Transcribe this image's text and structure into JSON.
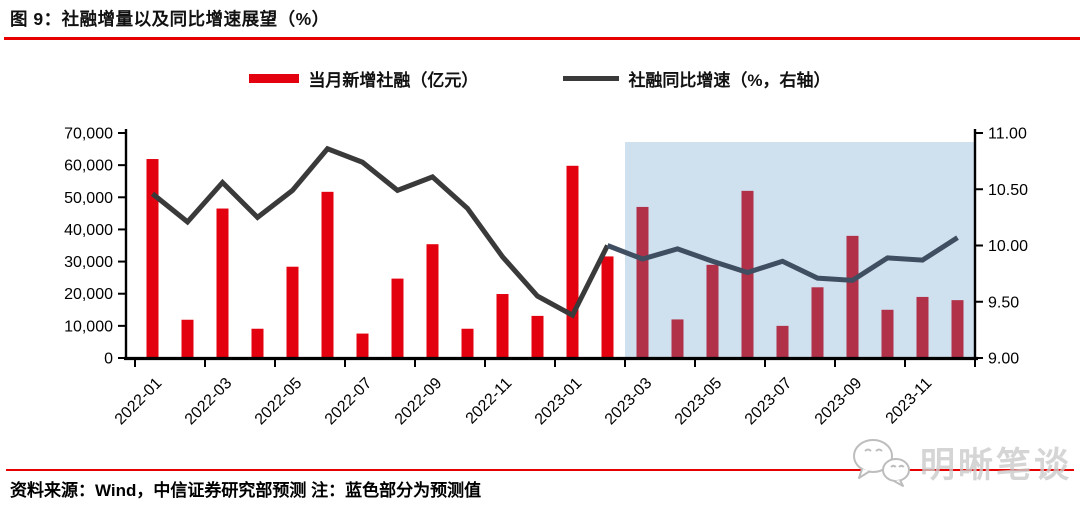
{
  "figure": {
    "title": "图 9：社融增量以及同比增速展望（%）",
    "footer": "资料来源：Wind，中信证券研究部预测 注：蓝色部分为预测值",
    "watermark": "明晰笔谈"
  },
  "legend": [
    {
      "label": "当月新增社融（亿元）",
      "swatch": "bar"
    },
    {
      "label": "社融同比增速（%，右轴）",
      "swatch": "line"
    }
  ],
  "colors": {
    "bar_actual": "#e3000f",
    "bar_forecast": "#b13148",
    "line_actual": "#3a3a3a",
    "line_forecast": "#3f4e61",
    "forecast_shade": "#cfe0ef",
    "accent_red": "#e60000",
    "axis": "#000000"
  },
  "chart_data": {
    "type": "bar",
    "subtype": "bar+line combo, dual axis",
    "title": "社融增量以及同比增速展望（%）",
    "categories": [
      "2022-01",
      "2022-02",
      "2022-03",
      "2022-04",
      "2022-05",
      "2022-06",
      "2022-07",
      "2022-08",
      "2022-09",
      "2022-10",
      "2022-11",
      "2022-12",
      "2023-01",
      "2023-02",
      "2023-03",
      "2023-04",
      "2023-05",
      "2023-06",
      "2023-07",
      "2023-08",
      "2023-09",
      "2023-10",
      "2023-11",
      "2023-12"
    ],
    "x_tick_labels": [
      "2022-01",
      "2022-03",
      "2022-05",
      "2022-07",
      "2022-09",
      "2022-11",
      "2023-01",
      "2023-03",
      "2023-05",
      "2023-07",
      "2023-09",
      "2023-11"
    ],
    "series": [
      {
        "name": "当月新增社融（亿元）",
        "type": "bar",
        "axis": "left",
        "values": [
          61900,
          11900,
          46500,
          9100,
          28400,
          51700,
          7600,
          24700,
          35400,
          9100,
          19900,
          13100,
          59800,
          31600,
          47000,
          12000,
          29000,
          52000,
          10000,
          22000,
          38000,
          15000,
          19000,
          18000
        ]
      },
      {
        "name": "社融同比增速（%，右轴）",
        "type": "line",
        "axis": "right",
        "values": [
          10.46,
          10.21,
          10.56,
          10.25,
          10.49,
          10.86,
          10.74,
          10.49,
          10.61,
          10.33,
          9.9,
          9.55,
          9.38,
          10.0,
          9.88,
          9.97,
          9.86,
          9.76,
          9.86,
          9.71,
          9.69,
          9.89,
          9.87,
          10.07
        ]
      }
    ],
    "forecast_start_index": 14,
    "forecast_note": "蓝色部分为预测值",
    "left_axis": {
      "min": 0,
      "max": 70000,
      "step": 10000,
      "tick_labels": [
        "0",
        "10,000",
        "20,000",
        "30,000",
        "40,000",
        "50,000",
        "60,000",
        "70,000"
      ]
    },
    "right_axis": {
      "min": 9.0,
      "max": 11.0,
      "step": 0.5,
      "tick_labels": [
        "9.00",
        "9.50",
        "10.00",
        "10.50",
        "11.00"
      ]
    },
    "grid": false,
    "legend_position": "top"
  }
}
